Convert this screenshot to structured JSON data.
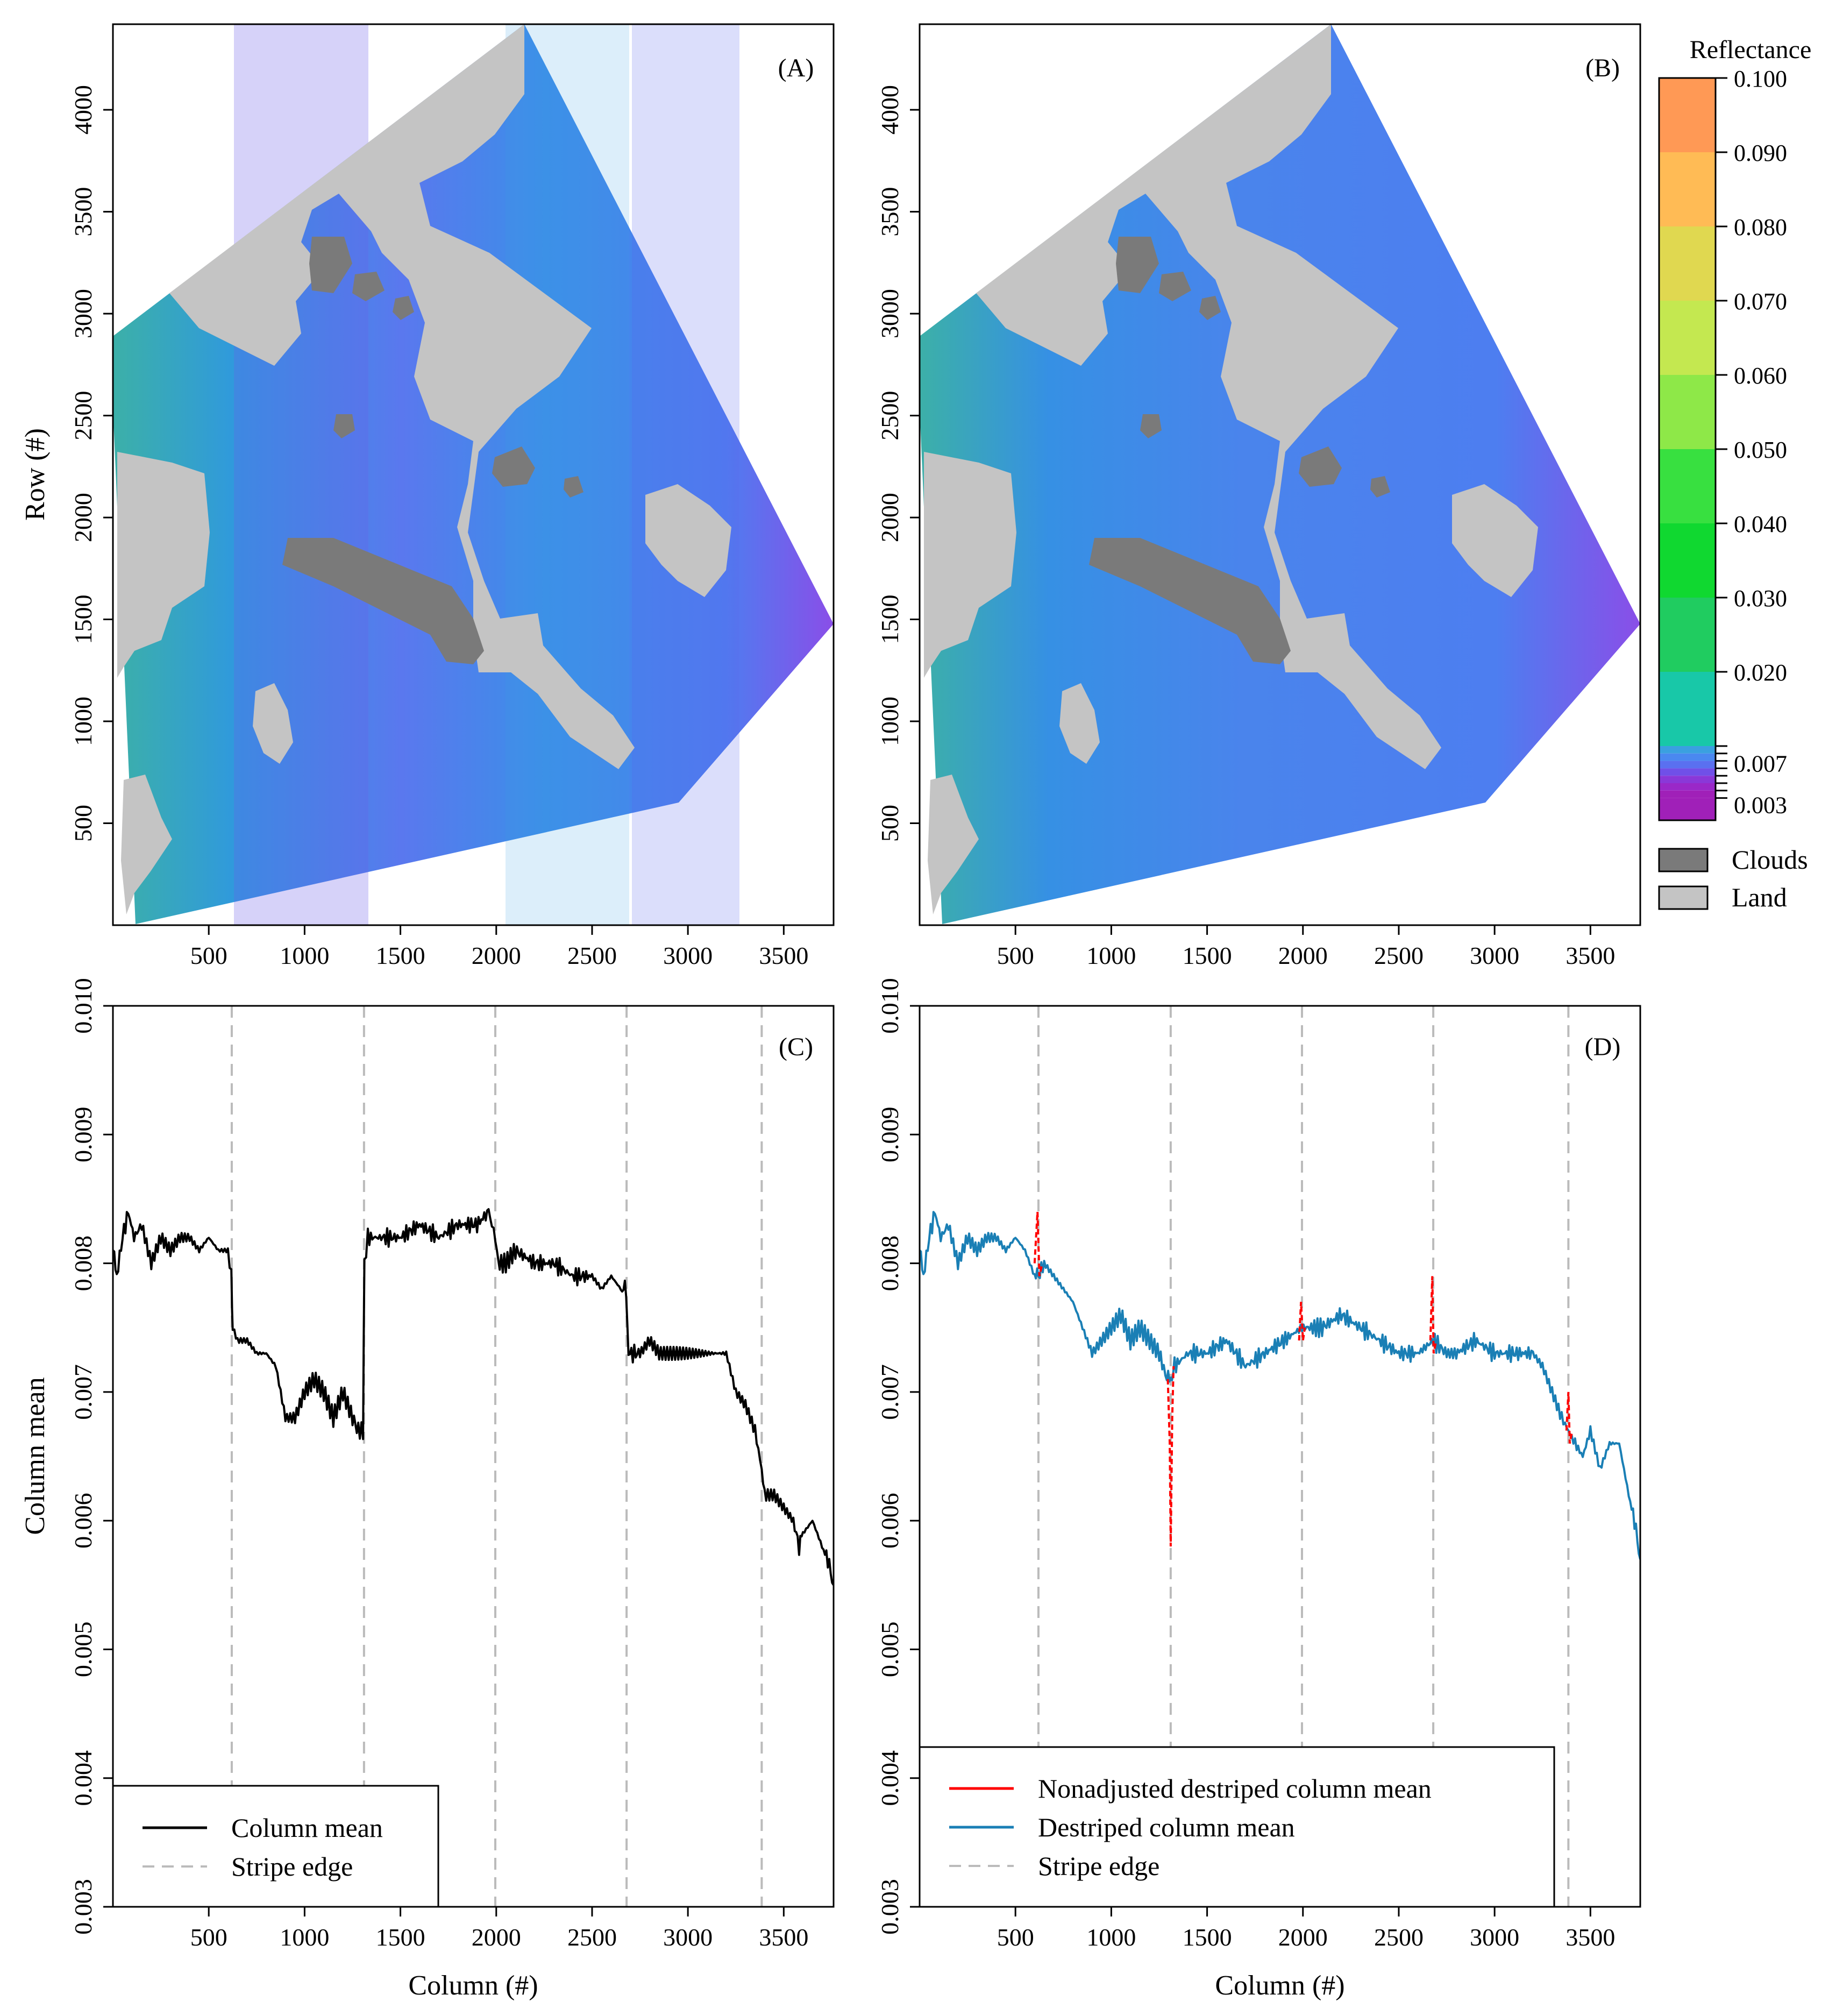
{
  "chart_data": [
    {
      "type": "heatmap",
      "panel_label": "(A)",
      "description_axis": {
        "ylabel": "Row (#)",
        "xlabel": ""
      },
      "x_ticks": [
        "500",
        "1000",
        "1500",
        "2000",
        "2500",
        "3000",
        "3500"
      ],
      "y_ticks": [
        "500",
        "1000",
        "1500",
        "2000",
        "2500",
        "3000",
        "3500",
        "4000"
      ],
      "xlim": [
        0,
        3760
      ],
      "ylim": [
        0,
        4420
      ]
    },
    {
      "type": "heatmap",
      "panel_label": "(B)",
      "description_axis": {
        "ylabel": "",
        "xlabel": ""
      },
      "x_ticks": [
        "500",
        "1000",
        "1500",
        "2000",
        "2500",
        "3000",
        "3500"
      ],
      "y_ticks": [
        "500",
        "1000",
        "1500",
        "2000",
        "2500",
        "3000",
        "3500",
        "4000"
      ],
      "xlim": [
        0,
        3760
      ],
      "ylim": [
        0,
        4420
      ]
    },
    {
      "type": "line",
      "panel_label": "(C)",
      "xlabel": "Column (#)",
      "ylabel": "Column mean",
      "xlim": [
        0,
        3760
      ],
      "ylim": [
        0.003,
        0.01
      ],
      "x_ticks": [
        "500",
        "1000",
        "1500",
        "2000",
        "2500",
        "3000",
        "3500"
      ],
      "y_ticks": [
        "0.003",
        "0.004",
        "0.005",
        "0.006",
        "0.007",
        "0.008",
        "0.009",
        "0.010"
      ],
      "stripe_edges": [
        620,
        1310,
        1995,
        2680,
        3385
      ],
      "series": [
        {
          "name": "Column mean",
          "color": "#000000",
          "x": [
            0,
            20,
            50,
            80,
            110,
            150,
            200,
            250,
            300,
            350,
            400,
            450,
            500,
            550,
            600,
            618,
            625,
            650,
            700,
            750,
            800,
            850,
            900,
            950,
            1000,
            1050,
            1100,
            1150,
            1200,
            1250,
            1280,
            1305,
            1312,
            1330,
            1400,
            1500,
            1600,
            1700,
            1800,
            1900,
            1960,
            1995,
            2010,
            2050,
            2100,
            2200,
            2300,
            2400,
            2500,
            2550,
            2600,
            2650,
            2678,
            2690,
            2750,
            2800,
            2850,
            2900,
            2950,
            3000,
            3050,
            3100,
            3150,
            3200,
            3250,
            3300,
            3350,
            3385,
            3400,
            3450,
            3500,
            3550,
            3580,
            3600,
            3650,
            3700,
            3730,
            3760
          ],
          "values": [
            0.0081,
            0.0079,
            0.0082,
            0.0084,
            0.0082,
            0.0083,
            0.008,
            0.0082,
            0.0081,
            0.0082,
            0.0082,
            0.0081,
            0.0082,
            0.0081,
            0.0081,
            0.0079,
            0.0075,
            0.0074,
            0.0074,
            0.0073,
            0.0073,
            0.0072,
            0.0068,
            0.0068,
            0.007,
            0.0071,
            0.007,
            0.0068,
            0.007,
            0.0068,
            0.0067,
            0.0067,
            0.008,
            0.0082,
            0.0082,
            0.0082,
            0.0083,
            0.0082,
            0.0083,
            0.0083,
            0.0084,
            0.0082,
            0.008,
            0.008,
            0.0081,
            0.008,
            0.008,
            0.0079,
            0.0079,
            0.0078,
            0.0079,
            0.0078,
            0.0078,
            0.0073,
            0.0073,
            0.0074,
            0.0073,
            0.0073,
            0.0073,
            0.0073,
            0.0073,
            0.0073,
            0.0073,
            0.0073,
            0.007,
            0.0069,
            0.0067,
            0.0064,
            0.0062,
            0.0062,
            0.0061,
            0.006,
            0.0058,
            0.0059,
            0.006,
            0.0058,
            0.0057,
            0.0055
          ]
        }
      ],
      "legend": {
        "position": "bottom-left",
        "entries": [
          "Column mean",
          "Stripe edge"
        ]
      }
    },
    {
      "type": "line",
      "panel_label": "(D)",
      "xlabel": "Column (#)",
      "ylabel": "",
      "xlim": [
        0,
        3760
      ],
      "ylim": [
        0.003,
        0.01
      ],
      "x_ticks": [
        "500",
        "1000",
        "1500",
        "2000",
        "2500",
        "3000",
        "3500"
      ],
      "y_ticks": [
        "0.003",
        "0.004",
        "0.005",
        "0.006",
        "0.007",
        "0.008",
        "0.009",
        "0.010"
      ],
      "stripe_edges": [
        620,
        1310,
        1995,
        2680,
        3385
      ],
      "series": [
        {
          "name": "Destriped column mean",
          "color": "#1a7fb5",
          "x": [
            0,
            20,
            50,
            80,
            110,
            150,
            200,
            250,
            300,
            350,
            400,
            450,
            500,
            550,
            600,
            620,
            650,
            700,
            750,
            800,
            850,
            900,
            950,
            1000,
            1050,
            1100,
            1150,
            1200,
            1250,
            1290,
            1310,
            1330,
            1400,
            1500,
            1600,
            1700,
            1800,
            1900,
            1995,
            2100,
            2200,
            2300,
            2400,
            2500,
            2600,
            2680,
            2750,
            2800,
            2900,
            3000,
            3100,
            3200,
            3250,
            3300,
            3350,
            3385,
            3420,
            3460,
            3500,
            3550,
            3600,
            3650,
            3700,
            3730,
            3760
          ],
          "values": [
            0.0081,
            0.0079,
            0.0082,
            0.0084,
            0.0082,
            0.0083,
            0.008,
            0.0082,
            0.0081,
            0.0082,
            0.0082,
            0.0081,
            0.0082,
            0.0081,
            0.0079,
            0.0079,
            0.008,
            0.0079,
            0.0078,
            0.0077,
            0.0075,
            0.0073,
            0.0074,
            0.0075,
            0.0076,
            0.0074,
            0.0075,
            0.0074,
            0.0073,
            0.0071,
            0.0071,
            0.0072,
            0.0073,
            0.0073,
            0.0074,
            0.0072,
            0.0073,
            0.0074,
            0.0075,
            0.0075,
            0.0076,
            0.0075,
            0.0074,
            0.0073,
            0.0073,
            0.0074,
            0.0073,
            0.0073,
            0.0074,
            0.0073,
            0.0073,
            0.0073,
            0.0072,
            0.007,
            0.0068,
            0.0067,
            0.0066,
            0.0065,
            0.0067,
            0.0064,
            0.0066,
            0.0066,
            0.0062,
            0.006,
            0.0057
          ]
        },
        {
          "name": "Nonadjusted destriped column mean",
          "color": "#ff0000",
          "segments": [
            {
              "x": [
                600,
                615,
                625,
                640
              ],
              "values": [
                0.008,
                0.0084,
                0.0079,
                0.008
              ]
            },
            {
              "x": [
                1295,
                1305,
                1310,
                1318,
                1325
              ],
              "values": [
                0.0071,
                0.0066,
                0.0058,
                0.0068,
                0.0072
              ]
            },
            {
              "x": [
                1980,
                1990,
                2000,
                2010
              ],
              "values": [
                0.0074,
                0.0077,
                0.0074,
                0.0075
              ]
            },
            {
              "x": [
                2665,
                2675,
                2682,
                2695
              ],
              "values": [
                0.0074,
                0.0079,
                0.0073,
                0.0074
              ]
            },
            {
              "x": [
                3375,
                3385,
                3392,
                3405
              ],
              "values": [
                0.0067,
                0.007,
                0.0066,
                0.0067
              ]
            }
          ]
        }
      ],
      "legend": {
        "position": "bottom-left",
        "entries": [
          "Nonadjusted destriped column mean",
          "Destriped column mean",
          "Stripe edge"
        ]
      }
    }
  ],
  "colorbar": {
    "title": "Reflectance",
    "labels": [
      "0.100",
      "0.090",
      "0.080",
      "0.070",
      "0.060",
      "0.050",
      "0.040",
      "0.030",
      "0.020",
      "0.007",
      "0.003"
    ],
    "colors": [
      "#ff9955",
      "#ffbb55",
      "#e0d850",
      "#c4e850",
      "#8ee848",
      "#38e040",
      "#10d830",
      "#20cc60",
      "#18c8a8",
      "#5080ff",
      "#a020c0"
    ],
    "legend_items": [
      {
        "label": "Clouds",
        "color": "#7a7a7a"
      },
      {
        "label": "Land",
        "color": "#c4c4c4"
      }
    ]
  }
}
